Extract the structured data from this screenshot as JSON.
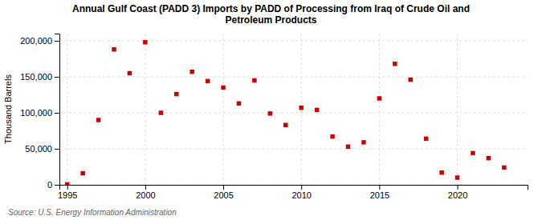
{
  "chart_data": {
    "type": "scatter",
    "title": "Annual Gulf Coast (PADD 3) Imports by PADD of Processing from Iraq of Crude Oil and\nPetroleum Products",
    "y_label": "Thousand Barrels",
    "annotations": [
      "Source: U.S. Energy Information Administration"
    ],
    "x": [
      1995,
      1996,
      1997,
      1998,
      1999,
      2000,
      2001,
      2002,
      2003,
      2004,
      2005,
      2006,
      2007,
      2008,
      2009,
      2010,
      2011,
      2012,
      2013,
      2014,
      2015,
      2016,
      2017,
      2018,
      2019,
      2020,
      2021,
      2022,
      2023
    ],
    "values": [
      500,
      16000,
      90000,
      188000,
      155000,
      198000,
      100000,
      126000,
      157000,
      144000,
      135000,
      113000,
      145000,
      99000,
      83000,
      107000,
      104000,
      67000,
      53000,
      59000,
      120000,
      168000,
      146000,
      64000,
      17000,
      10000,
      44000,
      37000,
      24000
    ],
    "color": "#cc0000",
    "marker": "square",
    "xlim": [
      1994.5,
      2024.5
    ],
    "ylim": [
      0,
      210000
    ],
    "xticks": [
      1995,
      2000,
      2005,
      2010,
      2015,
      2020
    ],
    "yticks": [
      0,
      {
        "value": 50000,
        "label": "50,000"
      },
      {
        "value": 100000,
        "label": "100,000"
      },
      {
        "value": 150000,
        "label": "150,000"
      },
      {
        "value": 200000,
        "label": "200,000"
      }
    ],
    "grid": true
  }
}
